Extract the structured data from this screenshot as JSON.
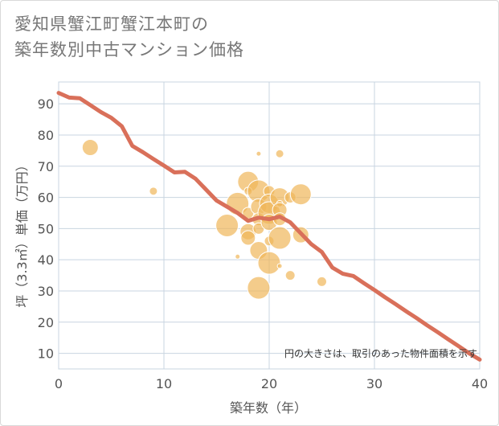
{
  "chart_data": {
    "type": "scatter",
    "title_line1": "愛知県蟹江町蟹江本町の",
    "title_line2": "築年数別中古マンション価格",
    "xlabel": "築年数（年）",
    "ylabel": "坪（3.3㎡）単価（万円）",
    "note": "円の大きさは、取引のあった物件面積を示す",
    "xlim": [
      0,
      40
    ],
    "ylim": [
      5,
      97
    ],
    "xticks": [
      0,
      10,
      20,
      30,
      40
    ],
    "yticks": [
      10,
      20,
      30,
      40,
      50,
      60,
      70,
      80,
      90
    ],
    "grid": true,
    "colors": {
      "bubble": "#f0b65a",
      "line": "#d9705a",
      "grid": "#c8d4e0"
    },
    "bubbles": [
      {
        "x": 3,
        "y": 76,
        "size": 10
      },
      {
        "x": 9,
        "y": 62,
        "size": 5
      },
      {
        "x": 16,
        "y": 51,
        "size": 14
      },
      {
        "x": 17,
        "y": 58,
        "size": 14
      },
      {
        "x": 17,
        "y": 41,
        "size": 3
      },
      {
        "x": 18,
        "y": 65,
        "size": 13
      },
      {
        "x": 18,
        "y": 62,
        "size": 5
      },
      {
        "x": 18,
        "y": 55,
        "size": 7
      },
      {
        "x": 18,
        "y": 49,
        "size": 10
      },
      {
        "x": 18,
        "y": 47,
        "size": 9
      },
      {
        "x": 19,
        "y": 74,
        "size": 3
      },
      {
        "x": 19,
        "y": 62,
        "size": 14
      },
      {
        "x": 19,
        "y": 57,
        "size": 10
      },
      {
        "x": 19,
        "y": 53,
        "size": 8
      },
      {
        "x": 19,
        "y": 50,
        "size": 7
      },
      {
        "x": 19,
        "y": 43,
        "size": 11
      },
      {
        "x": 19,
        "y": 31,
        "size": 14
      },
      {
        "x": 20,
        "y": 62,
        "size": 7
      },
      {
        "x": 20,
        "y": 58,
        "size": 12
      },
      {
        "x": 20,
        "y": 55,
        "size": 14
      },
      {
        "x": 20,
        "y": 52,
        "size": 10
      },
      {
        "x": 20,
        "y": 46,
        "size": 6
      },
      {
        "x": 20,
        "y": 39,
        "size": 14
      },
      {
        "x": 21,
        "y": 74,
        "size": 5
      },
      {
        "x": 21,
        "y": 60,
        "size": 12
      },
      {
        "x": 21,
        "y": 58,
        "size": 4
      },
      {
        "x": 21,
        "y": 56,
        "size": 9
      },
      {
        "x": 21,
        "y": 53,
        "size": 8
      },
      {
        "x": 21,
        "y": 47,
        "size": 14
      },
      {
        "x": 21,
        "y": 38,
        "size": 3
      },
      {
        "x": 22,
        "y": 60,
        "size": 7
      },
      {
        "x": 22,
        "y": 35,
        "size": 6
      },
      {
        "x": 23,
        "y": 61,
        "size": 13
      },
      {
        "x": 23,
        "y": 48,
        "size": 10
      },
      {
        "x": 25,
        "y": 33,
        "size": 6
      }
    ],
    "trend": {
      "x": [
        0,
        1,
        2,
        3,
        4,
        5,
        6,
        7,
        8,
        9,
        10,
        11,
        12,
        13,
        14,
        15,
        16,
        17,
        18,
        19,
        20,
        21,
        22,
        23,
        24,
        25,
        26,
        27,
        28,
        29,
        30,
        31,
        32,
        33,
        34,
        35,
        36,
        37,
        38,
        39,
        40
      ],
      "y": [
        93.5,
        92,
        91.8,
        89.6,
        87.4,
        85.5,
        82.8,
        76.5,
        74.5,
        72.3,
        70.2,
        68,
        68.2,
        66,
        62.5,
        59,
        57,
        55,
        52.5,
        53.5,
        53,
        53.8,
        52,
        48.5,
        45,
        42.5,
        37.5,
        35.5,
        34.8,
        32.5,
        30.3,
        28,
        25.8,
        23.5,
        21.3,
        19,
        16.8,
        14.5,
        12.3,
        10,
        8
      ]
    }
  }
}
